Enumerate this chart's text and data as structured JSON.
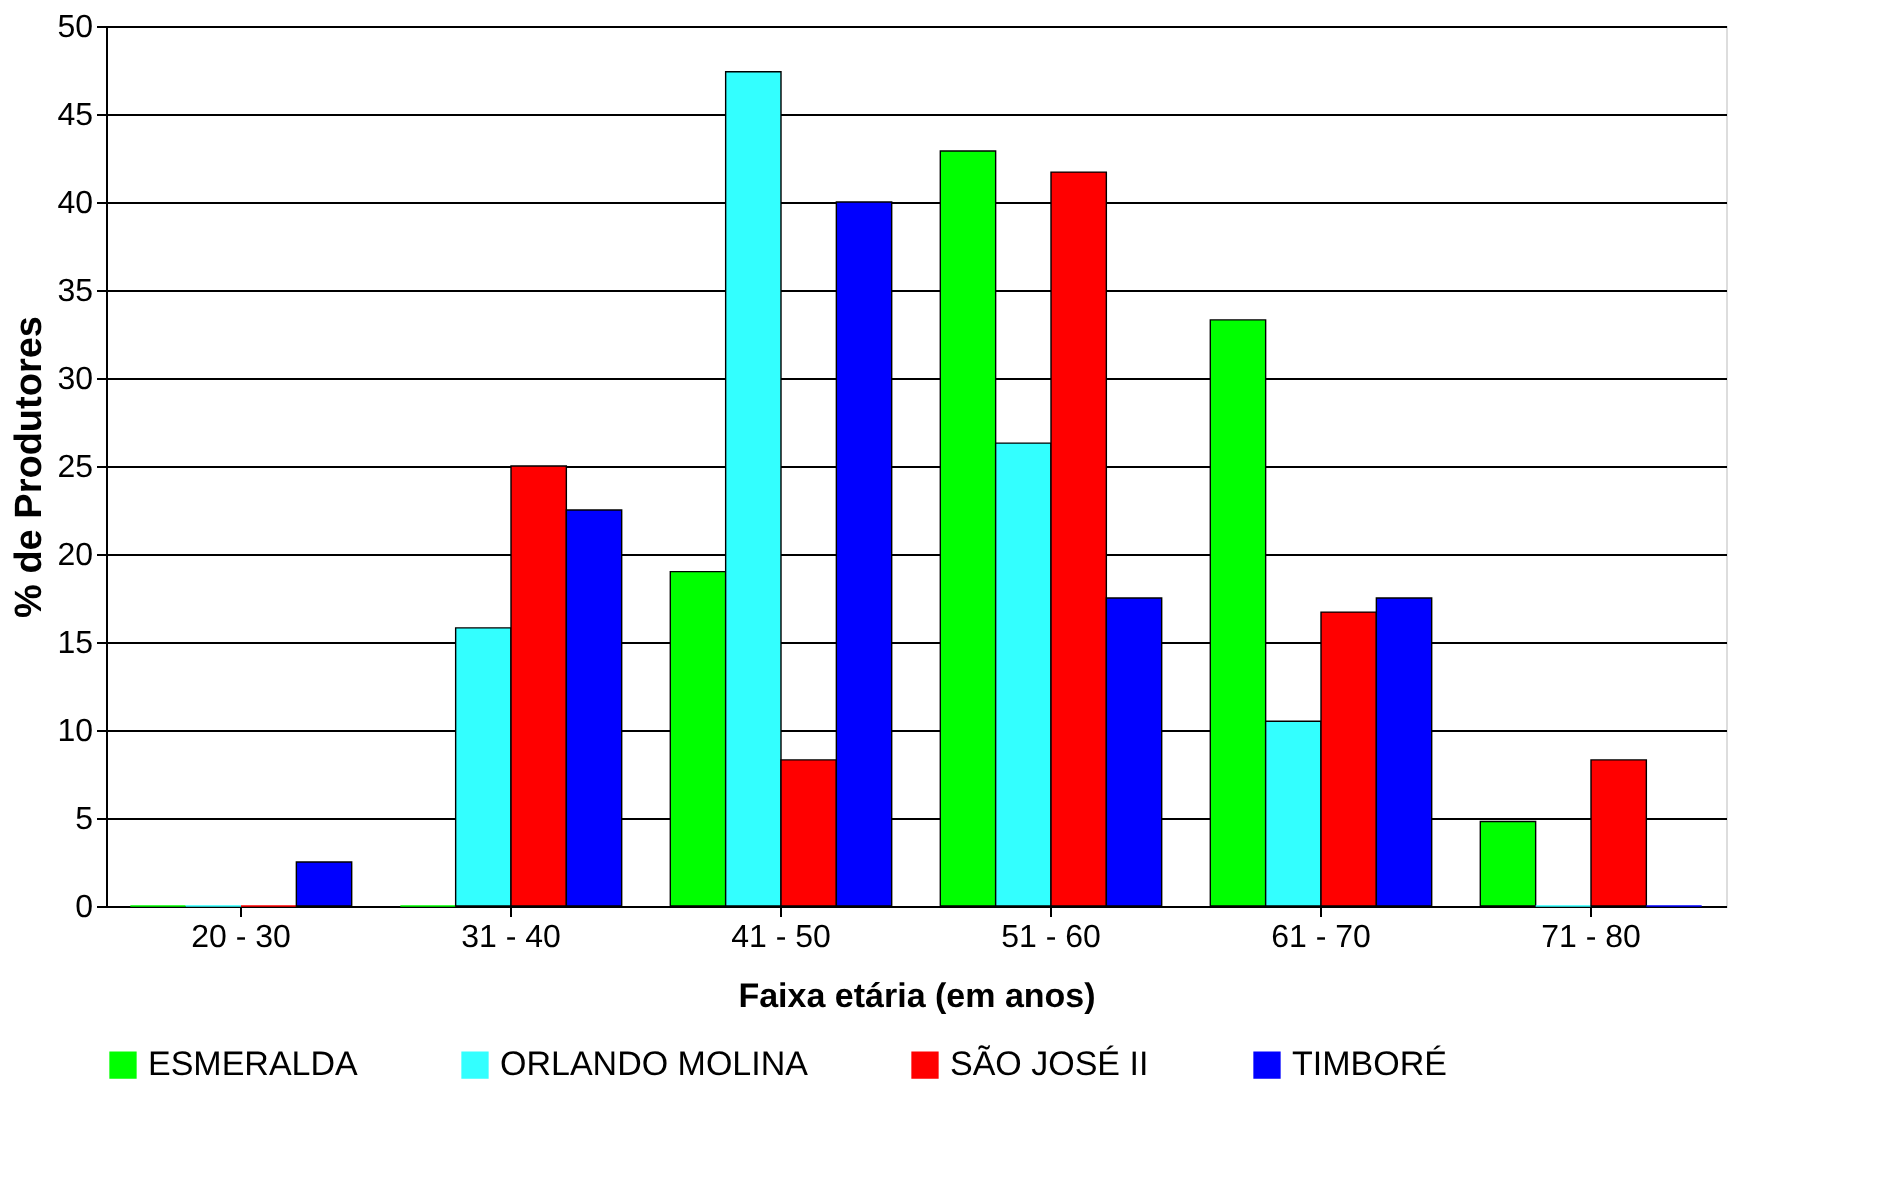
{
  "chart_data": {
    "type": "bar",
    "xlabel": "Faixa etária (em anos)",
    "ylabel": "% de Produtores",
    "categories": [
      "20 - 30",
      "31 - 40",
      "41 - 50",
      "51 - 60",
      "61 - 70",
      "71 - 80"
    ],
    "series": [
      {
        "name": "ESMERALDA",
        "color": "#00ff00",
        "values": [
          0,
          0,
          19,
          42.9,
          33.3,
          4.8
        ]
      },
      {
        "name": "ORLANDO MOLINA",
        "color": "#33ffff",
        "values": [
          0,
          15.8,
          47.4,
          26.3,
          10.5,
          0
        ]
      },
      {
        "name": "SÃO JOSÉ II",
        "color": "#ff0000",
        "values": [
          0,
          25,
          8.3,
          41.7,
          16.7,
          8.3
        ]
      },
      {
        "name": "TIMBORÉ",
        "color": "#0000ff",
        "values": [
          2.5,
          22.5,
          40,
          17.5,
          17.5,
          0
        ]
      }
    ],
    "ylim": [
      0,
      50
    ],
    "yticks": [
      0,
      5,
      10,
      15,
      20,
      25,
      30,
      35,
      40,
      45,
      50
    ],
    "grid": "y",
    "legend": "bottom"
  }
}
